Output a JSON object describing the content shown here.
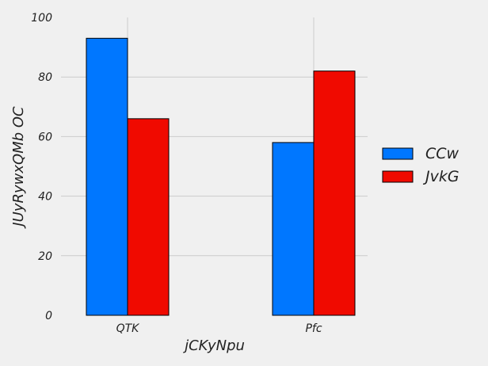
{
  "chart_data": {
    "type": "bar",
    "categories": [
      "QTK",
      "Pfc"
    ],
    "series": [
      {
        "name": "CCw",
        "values": [
          93,
          58
        ],
        "color": "#0077ff"
      },
      {
        "name": "JvkG",
        "values": [
          66,
          82
        ],
        "color": "#f00a00"
      }
    ],
    "xlabel": "jCKyNpu",
    "ylabel": "JUyRywxQMb  OC",
    "ylim": [
      0,
      100
    ],
    "yticks": [
      0,
      20,
      40,
      60,
      80,
      100
    ],
    "grid": true,
    "legend": "right",
    "background": "#f0f0f0",
    "grid_color": "#cbcbcb",
    "edge_color": "#000000"
  }
}
